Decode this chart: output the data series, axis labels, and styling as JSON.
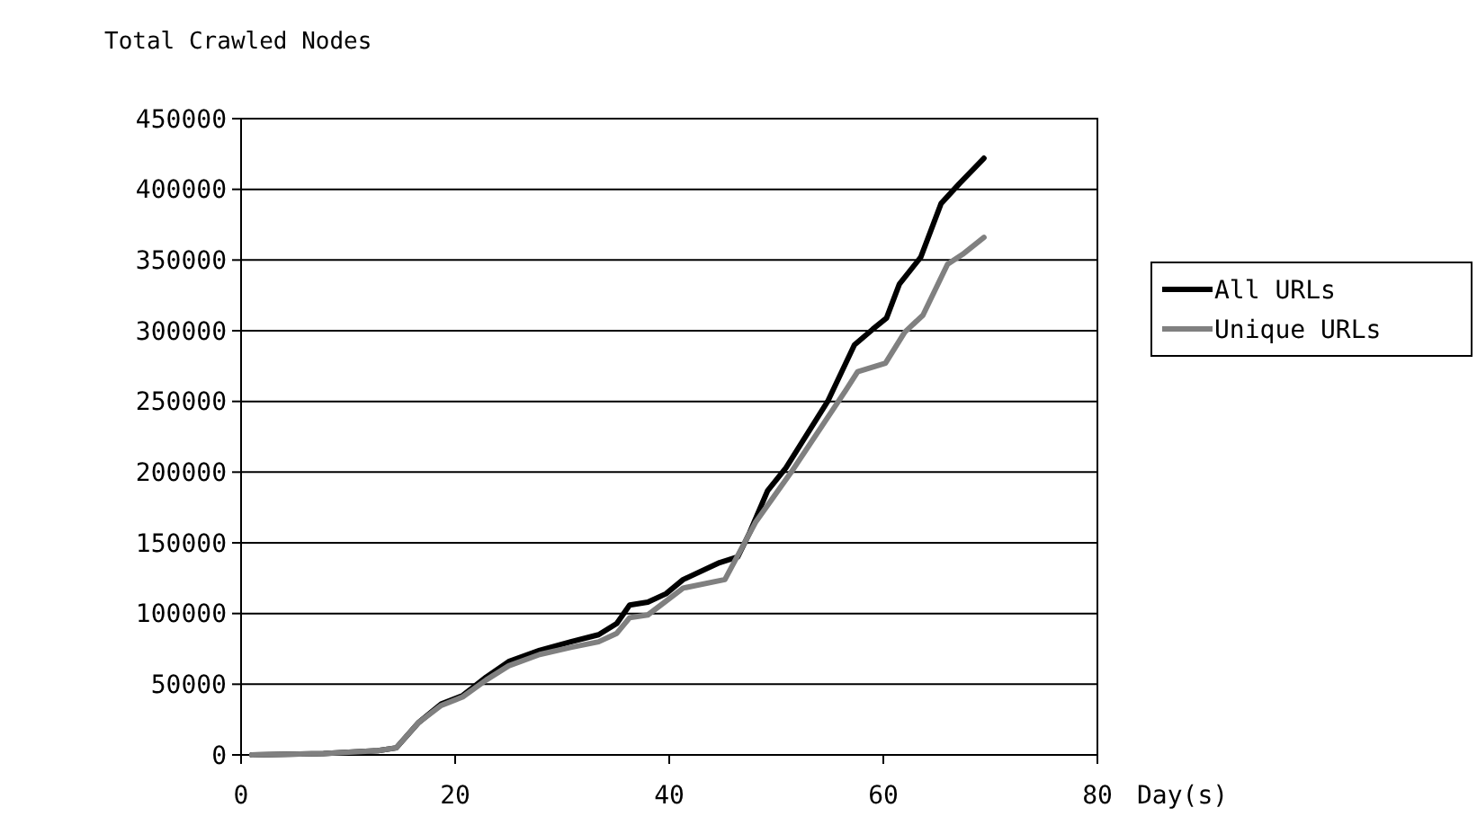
{
  "chart_data": {
    "type": "line",
    "title": "Total Crawled Nodes",
    "xlabel": "Day(s)",
    "xlim": [
      0,
      80
    ],
    "xticks": [
      0,
      20,
      40,
      60,
      80
    ],
    "ylim": [
      0,
      450000
    ],
    "yticks": [
      0,
      50000,
      100000,
      150000,
      200000,
      250000,
      300000,
      350000,
      400000,
      450000
    ],
    "grid": "y",
    "legend": "right",
    "marker": "none",
    "line_style": "solid",
    "series": [
      {
        "name": "All URLs",
        "color": "#000000",
        "x": [
          1,
          7.7,
          12.8,
          14.5,
          16.6,
          18.7,
          20.7,
          22.9,
          25,
          27.9,
          30.8,
          33.4,
          35.1,
          36.3,
          38,
          39.7,
          41.3,
          44.7,
          46.4,
          47.5,
          49.2,
          50.9,
          54.8,
          57.3,
          59,
          60.3,
          61.5,
          63.5,
          65.4,
          67.1,
          69.4
        ],
        "values": [
          0,
          1000,
          3000,
          5000,
          23000,
          36000,
          42000,
          55000,
          66000,
          74000,
          80000,
          85000,
          93000,
          106000,
          108000,
          114000,
          124000,
          136000,
          140000,
          157000,
          187000,
          203000,
          250000,
          290000,
          301000,
          309000,
          333000,
          352000,
          390000,
          404000,
          422000
        ]
      },
      {
        "name": "Unique URLs",
        "color": "#808080",
        "x": [
          1,
          7.7,
          12.8,
          14.5,
          16.6,
          18.7,
          20.7,
          22.9,
          25,
          27.9,
          30.8,
          33.4,
          35.1,
          36.3,
          38,
          41.3,
          45.2,
          48.1,
          51.4,
          56.5,
          57.6,
          60.2,
          62,
          63.7,
          66,
          67.4,
          69.4
        ],
        "values": [
          0,
          1000,
          3000,
          5000,
          23000,
          35000,
          41000,
          53000,
          63000,
          71000,
          76000,
          80000,
          86000,
          97000,
          99000,
          118000,
          124000,
          165000,
          200000,
          258000,
          271000,
          277000,
          299000,
          311000,
          347000,
          354000,
          366000
        ]
      }
    ]
  }
}
